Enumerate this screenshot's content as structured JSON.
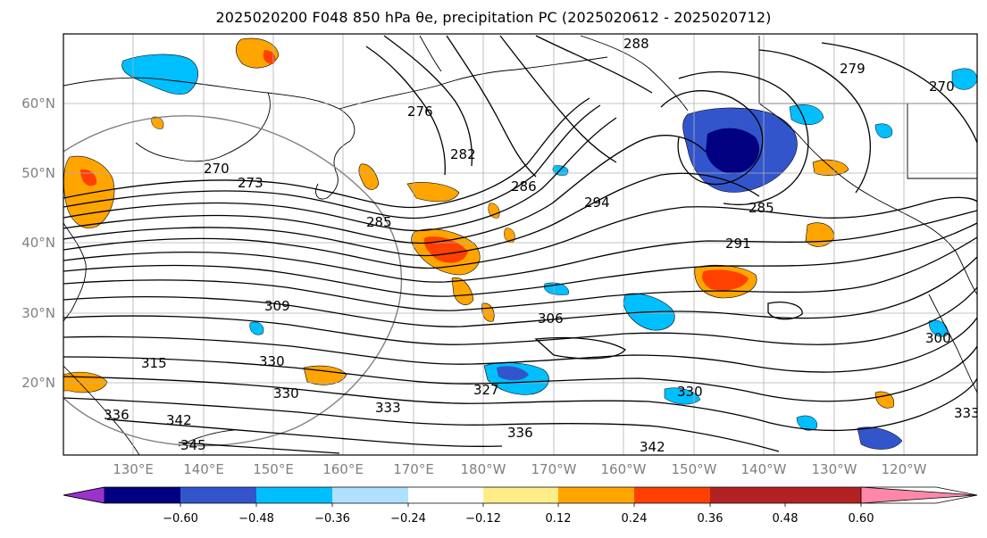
{
  "title": "2025020200 F048 850 hPa θe, precipitation PC (2025020612 - 2025020712)",
  "map": {
    "lat_labels": [
      "60°N",
      "50°N",
      "40°N",
      "30°N",
      "20°N"
    ],
    "lon_labels": [
      "130°E",
      "140°E",
      "150°E",
      "160°E",
      "170°E",
      "180°W",
      "170°W",
      "160°W",
      "150°W",
      "140°W",
      "130°W",
      "120°W"
    ],
    "contour_labels": [
      "288",
      "276",
      "279",
      "270",
      "282",
      "286",
      "294",
      "273",
      "270",
      "285",
      "285",
      "291",
      "309",
      "306",
      "315",
      "330",
      "330",
      "336",
      "342",
      "345",
      "327",
      "333",
      "330",
      "336",
      "342",
      "333",
      "300"
    ]
  },
  "colorbar": {
    "tick_labels": [
      "−0.60",
      "−0.48",
      "−0.36",
      "−0.24",
      "−0.12",
      "0.12",
      "0.24",
      "0.36",
      "0.48",
      "0.60"
    ],
    "colors": [
      "#9933cc",
      "#000080",
      "#3355cc",
      "#00bfff",
      "#b0e0ff",
      "#ffffff",
      "#ffee88",
      "#ffa500",
      "#ff4000",
      "#b22222",
      "#ff88aa"
    ]
  }
}
